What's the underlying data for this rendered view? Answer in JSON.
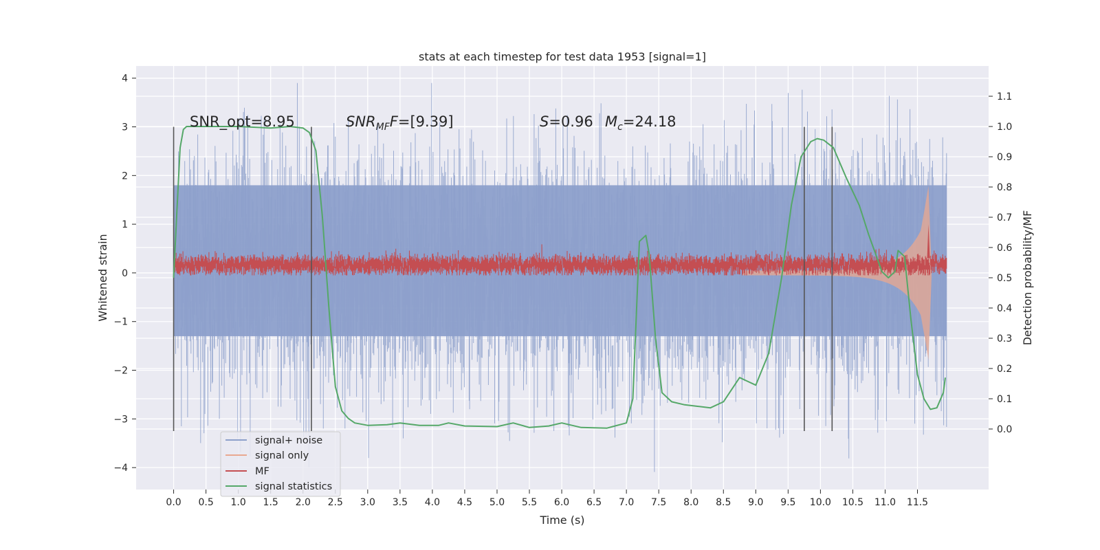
{
  "chart_data": {
    "type": "line",
    "title": "stats at each timestep for test data 1953 [signal=1]",
    "xlabel": "Time (s)",
    "ylabel": "Whitened strain",
    "y2label": "Detection probability/MF",
    "xlim": [
      -0.58,
      12.6
    ],
    "ylim": [
      -4.45,
      4.25
    ],
    "y2lim": [
      -0.2,
      1.2
    ],
    "xticks": [
      "0.0",
      "0.5",
      "1.0",
      "1.5",
      "2.0",
      "2.5",
      "3.0",
      "3.5",
      "4.0",
      "4.5",
      "5.0",
      "5.5",
      "6.0",
      "6.5",
      "7.0",
      "7.5",
      "8.0",
      "8.5",
      "9.0",
      "9.5",
      "10.0",
      "10.5",
      "11.0",
      "11.5"
    ],
    "yticks": [
      "4",
      "3",
      "2",
      "1",
      "0",
      "−1",
      "−2",
      "−3",
      "−4"
    ],
    "y2ticks": [
      "1.1",
      "1.0",
      "0.9",
      "0.8",
      "0.7",
      "0.6",
      "0.5",
      "0.4",
      "0.3",
      "0.2",
      "0.1",
      "0.0"
    ],
    "grid": true,
    "legend_position": "lower-left",
    "annotations": {
      "snr_opt": "SNR_opt=8.95",
      "snr_mf_base": "SNR",
      "snr_mf_sub": "MF",
      "snr_mf_val": "=[9.39]",
      "s_sym": "S",
      "s_val": "=0.96",
      "mc_sym": "M",
      "mc_sub": "c",
      "mc_val": "=24.18"
    },
    "vertical_markers_x": [
      0.0,
      2.13,
      9.75,
      10.18
    ],
    "series": [
      {
        "name": "signal+ noise",
        "color": "#8da0cb",
        "style": "noise",
        "x_range": [
          0.0,
          11.95
        ],
        "core_band": [
          -1.3,
          1.8
        ],
        "extreme_range": [
          -4.1,
          3.9
        ]
      },
      {
        "name": "signal only",
        "color": "#e9a88f",
        "style": "chirp",
        "x_range": [
          8.8,
          11.95
        ],
        "peak_time": 11.67,
        "peak_amplitude": 1.8
      },
      {
        "name": "MF",
        "color": "#c44e52",
        "style": "band",
        "x_range": [
          0.0,
          11.95
        ],
        "band": [
          0.02,
          0.3
        ],
        "peak_time": 11.67,
        "peak_value": 1.0
      },
      {
        "name": "signal statistics",
        "color": "#55a868",
        "style": "line",
        "axis": "right",
        "x": [
          0.0,
          0.05,
          0.1,
          0.15,
          0.2,
          0.3,
          0.5,
          1.0,
          1.5,
          1.8,
          2.0,
          2.1,
          2.2,
          2.3,
          2.4,
          2.5,
          2.6,
          2.7,
          2.8,
          3.0,
          3.3,
          3.5,
          3.8,
          4.1,
          4.25,
          4.5,
          5.0,
          5.25,
          5.5,
          5.8,
          6.0,
          6.3,
          6.7,
          7.0,
          7.1,
          7.2,
          7.3,
          7.35,
          7.45,
          7.55,
          7.7,
          7.9,
          8.1,
          8.3,
          8.5,
          8.75,
          8.85,
          9.0,
          9.2,
          9.4,
          9.55,
          9.7,
          9.85,
          9.95,
          10.05,
          10.2,
          10.4,
          10.6,
          10.75,
          10.85,
          10.95,
          11.05,
          11.15,
          11.2,
          11.3,
          11.4,
          11.5,
          11.6,
          11.7,
          11.8,
          11.9,
          11.93
        ],
        "y": [
          0.5,
          0.72,
          0.93,
          0.99,
          1.0,
          1.0,
          1.0,
          1.0,
          0.995,
          1.0,
          0.995,
          0.98,
          0.92,
          0.7,
          0.4,
          0.14,
          0.06,
          0.035,
          0.02,
          0.012,
          0.014,
          0.02,
          0.012,
          0.012,
          0.02,
          0.01,
          0.008,
          0.02,
          0.005,
          0.01,
          0.02,
          0.005,
          0.003,
          0.02,
          0.1,
          0.62,
          0.64,
          0.58,
          0.3,
          0.12,
          0.09,
          0.08,
          0.075,
          0.07,
          0.09,
          0.17,
          0.16,
          0.145,
          0.25,
          0.5,
          0.74,
          0.9,
          0.95,
          0.96,
          0.955,
          0.93,
          0.83,
          0.74,
          0.64,
          0.58,
          0.52,
          0.5,
          0.52,
          0.59,
          0.57,
          0.36,
          0.18,
          0.1,
          0.065,
          0.07,
          0.12,
          0.17
        ]
      }
    ]
  }
}
